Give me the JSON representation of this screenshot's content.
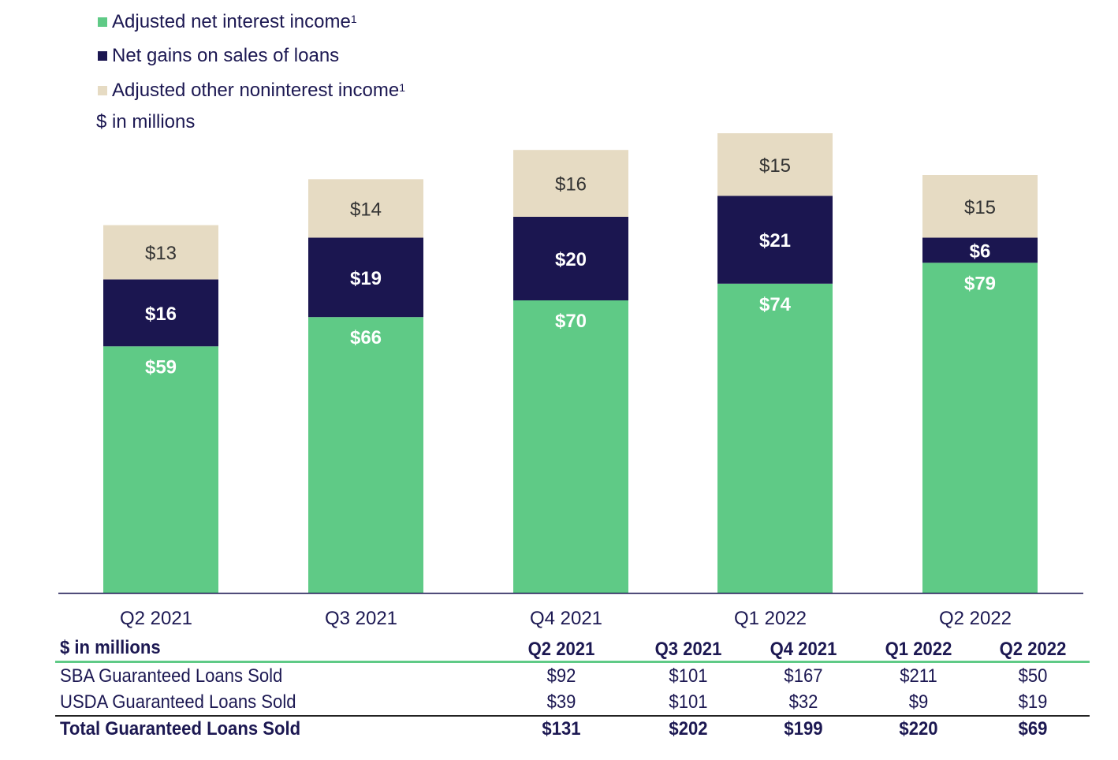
{
  "chart_data": {
    "type": "bar",
    "stacked": true,
    "subtitle": "$ in millions",
    "categories": [
      "Q2 2021",
      "Q3 2021",
      "Q4 2021",
      "Q1 2022",
      "Q2 2022"
    ],
    "series": [
      {
        "name": "Adjusted net interest income",
        "footnote": "1",
        "color": "#5fca86",
        "label_color": "#ffffff",
        "values": [
          59,
          66,
          70,
          74,
          79
        ],
        "labels": [
          "$59",
          "$66",
          "$70",
          "$74",
          "$79"
        ]
      },
      {
        "name": "Net gains on sales of loans",
        "color": "#1b1650",
        "label_color": "#ffffff",
        "values": [
          16,
          19,
          20,
          21,
          6
        ],
        "labels": [
          "$16",
          "$19",
          "$20",
          "$21",
          "$6"
        ]
      },
      {
        "name": "Adjusted other noninterest income",
        "footnote": "1",
        "color": "#e6dbc3",
        "label_color": "#333333",
        "values": [
          13,
          14,
          16,
          15,
          15
        ],
        "labels": [
          "$13",
          "$14",
          "$16",
          "$15",
          "$15"
        ]
      }
    ],
    "legend_placement": "top-left",
    "grid": false
  },
  "table": {
    "header": "$ in millions",
    "columns": [
      "Q2 2021",
      "Q3 2021",
      "Q4 2021",
      "Q1 2022",
      "Q2 2022"
    ],
    "rows": [
      {
        "label": "SBA Guaranteed Loans Sold",
        "values": [
          "$92",
          "$101",
          "$167",
          "$211",
          "$50"
        ]
      },
      {
        "label": "USDA Guaranteed Loans Sold",
        "values": [
          "$39",
          "$101",
          "$32",
          "$9",
          "$19"
        ]
      }
    ],
    "total": {
      "label": "Total Guaranteed Loans Sold",
      "values": [
        "$131",
        "$202",
        "$199",
        "$220",
        "$69"
      ]
    },
    "accent_color": "#5fca86"
  }
}
